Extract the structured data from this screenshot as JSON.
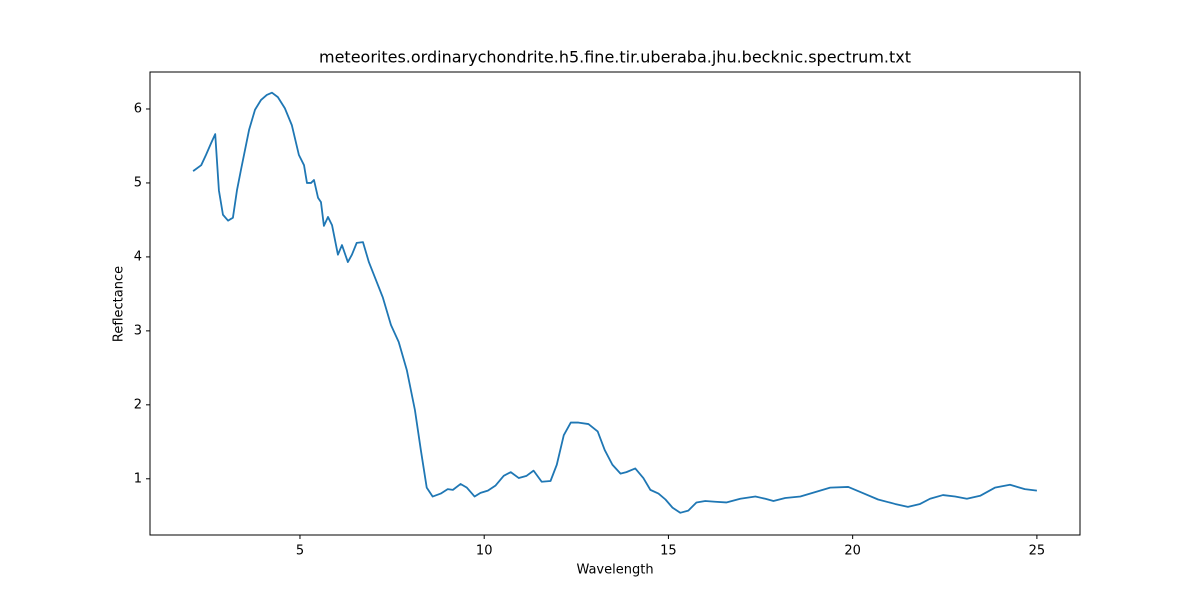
{
  "chart_data": {
    "type": "line",
    "title": "meteorites.ordinarychondrite.h5.fine.tir.uberaba.jhu.becknic.spectrum.txt",
    "xlabel": "Wavelength",
    "ylabel": "Reflectance",
    "xlim": [
      0.93,
      26.17
    ],
    "ylim": [
      0.24,
      6.5
    ],
    "xticks": [
      5,
      10,
      15,
      20,
      25
    ],
    "yticks": [
      1,
      2,
      3,
      4,
      5,
      6
    ],
    "grid": false,
    "x": [
      2.1,
      2.32,
      2.45,
      2.59,
      2.7,
      2.8,
      2.91,
      3.05,
      3.18,
      3.29,
      3.4,
      3.51,
      3.62,
      3.78,
      3.94,
      4.1,
      4.24,
      4.4,
      4.59,
      4.78,
      4.97,
      5.11,
      5.19,
      5.3,
      5.38,
      5.49,
      5.57,
      5.65,
      5.76,
      5.87,
      6.03,
      6.14,
      6.3,
      6.41,
      6.54,
      6.71,
      6.87,
      7.06,
      7.25,
      7.47,
      7.68,
      7.9,
      8.12,
      8.28,
      8.44,
      8.6,
      8.82,
      9.01,
      9.15,
      9.36,
      9.53,
      9.74,
      9.9,
      10.1,
      10.31,
      10.53,
      10.72,
      10.94,
      11.15,
      11.34,
      11.56,
      11.8,
      11.97,
      12.16,
      12.35,
      12.56,
      12.83,
      13.08,
      13.27,
      13.48,
      13.7,
      13.86,
      14.1,
      14.32,
      14.51,
      14.73,
      14.92,
      15.11,
      15.32,
      15.54,
      15.76,
      16.0,
      16.27,
      16.57,
      16.95,
      17.36,
      17.63,
      17.85,
      18.17,
      18.58,
      18.98,
      19.39,
      19.88,
      20.26,
      20.69,
      21.15,
      21.5,
      21.83,
      22.1,
      22.45,
      22.78,
      23.1,
      23.46,
      23.86,
      24.27,
      24.67,
      25.0
    ],
    "series": [
      {
        "name": "spectrum",
        "color": "#1f77b4",
        "values": [
          5.16,
          5.24,
          5.38,
          5.54,
          5.66,
          4.9,
          4.57,
          4.49,
          4.53,
          4.9,
          5.18,
          5.45,
          5.72,
          5.99,
          6.12,
          6.19,
          6.22,
          6.16,
          6.01,
          5.78,
          5.38,
          5.24,
          5.0,
          5.0,
          5.04,
          4.8,
          4.74,
          4.42,
          4.54,
          4.43,
          4.03,
          4.16,
          3.93,
          4.03,
          4.19,
          4.2,
          3.93,
          3.69,
          3.45,
          3.08,
          2.85,
          2.47,
          1.93,
          1.39,
          0.88,
          0.76,
          0.8,
          0.86,
          0.85,
          0.93,
          0.88,
          0.76,
          0.81,
          0.84,
          0.91,
          1.04,
          1.09,
          1.01,
          1.04,
          1.11,
          0.96,
          0.97,
          1.19,
          1.59,
          1.76,
          1.76,
          1.74,
          1.64,
          1.39,
          1.19,
          1.07,
          1.09,
          1.14,
          1.01,
          0.85,
          0.8,
          0.72,
          0.61,
          0.54,
          0.57,
          0.68,
          0.7,
          0.69,
          0.68,
          0.73,
          0.76,
          0.73,
          0.7,
          0.74,
          0.76,
          0.82,
          0.88,
          0.89,
          0.81,
          0.72,
          0.66,
          0.62,
          0.66,
          0.73,
          0.78,
          0.76,
          0.73,
          0.77,
          0.88,
          0.92,
          0.86,
          0.84
        ]
      }
    ]
  }
}
